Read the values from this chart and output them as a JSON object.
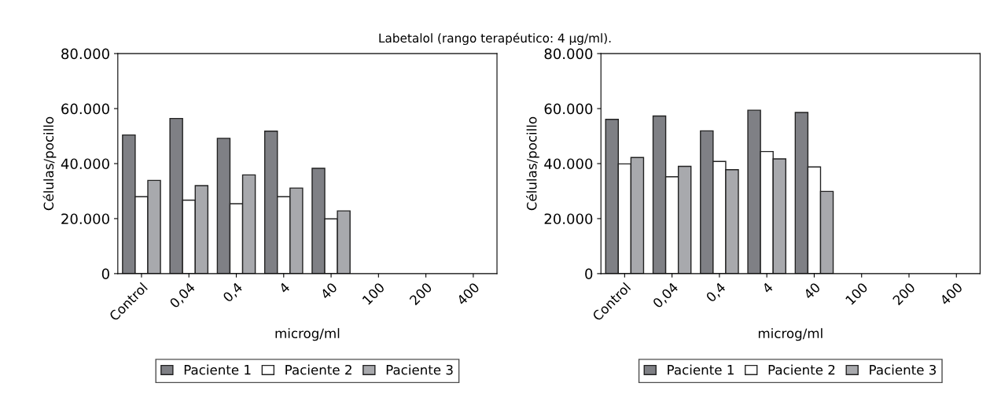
{
  "chart_data": [
    {
      "type": "bar",
      "title": "Labetalol (rango terapéutico: 4 µg/ml).",
      "xlabel": "microg/ml",
      "ylabel": "Células/pocillo",
      "categories": [
        "Control",
        "0,04",
        "0,4",
        "4",
        "40",
        "100",
        "200",
        "400"
      ],
      "series": [
        {
          "name": "Paciente 1",
          "color": "#7f8085",
          "values": [
            50400,
            56400,
            49200,
            51800,
            38300,
            null,
            null,
            null
          ]
        },
        {
          "name": "Paciente 2",
          "color": "#ffffff",
          "values": [
            28000,
            26700,
            25400,
            28000,
            19900,
            null,
            null,
            null
          ]
        },
        {
          "name": "Paciente 3",
          "color": "#a8a9ad",
          "values": [
            33900,
            32000,
            35900,
            31100,
            22800,
            null,
            null,
            null
          ]
        }
      ],
      "ylim": [
        0,
        80000
      ],
      "yticks": [
        0,
        {
          "value": 20000,
          "label": "20.000"
        },
        {
          "value": 40000,
          "label": "40.000"
        },
        {
          "value": 60000,
          "label": "60.000"
        },
        {
          "value": 80000,
          "label": "80.000"
        }
      ],
      "grid": false,
      "legend": "bottom"
    },
    {
      "type": "bar",
      "xlabel": "microg/ml",
      "ylabel": "Células/pocillo",
      "categories": [
        "Control",
        "0,04",
        "0,4",
        "4",
        "40",
        "100",
        "200",
        "400"
      ],
      "series": [
        {
          "name": "Paciente 1",
          "color": "#7f8085",
          "values": [
            56100,
            57300,
            51900,
            59400,
            58600,
            null,
            null,
            null
          ]
        },
        {
          "name": "Paciente 2",
          "color": "#ffffff",
          "values": [
            39900,
            35200,
            40800,
            44400,
            38800,
            null,
            null,
            null
          ]
        },
        {
          "name": "Paciente 3",
          "color": "#a8a9ad",
          "values": [
            42200,
            39000,
            37800,
            41700,
            29900,
            null,
            null,
            null
          ]
        }
      ],
      "ylim": [
        0,
        80000
      ],
      "yticks": [
        0,
        {
          "value": 20000,
          "label": "20.000"
        },
        {
          "value": 40000,
          "label": "40.000"
        },
        {
          "value": 60000,
          "label": "60.000"
        },
        {
          "value": 80000,
          "label": "80.000"
        }
      ],
      "grid": false,
      "legend": "bottom"
    }
  ]
}
